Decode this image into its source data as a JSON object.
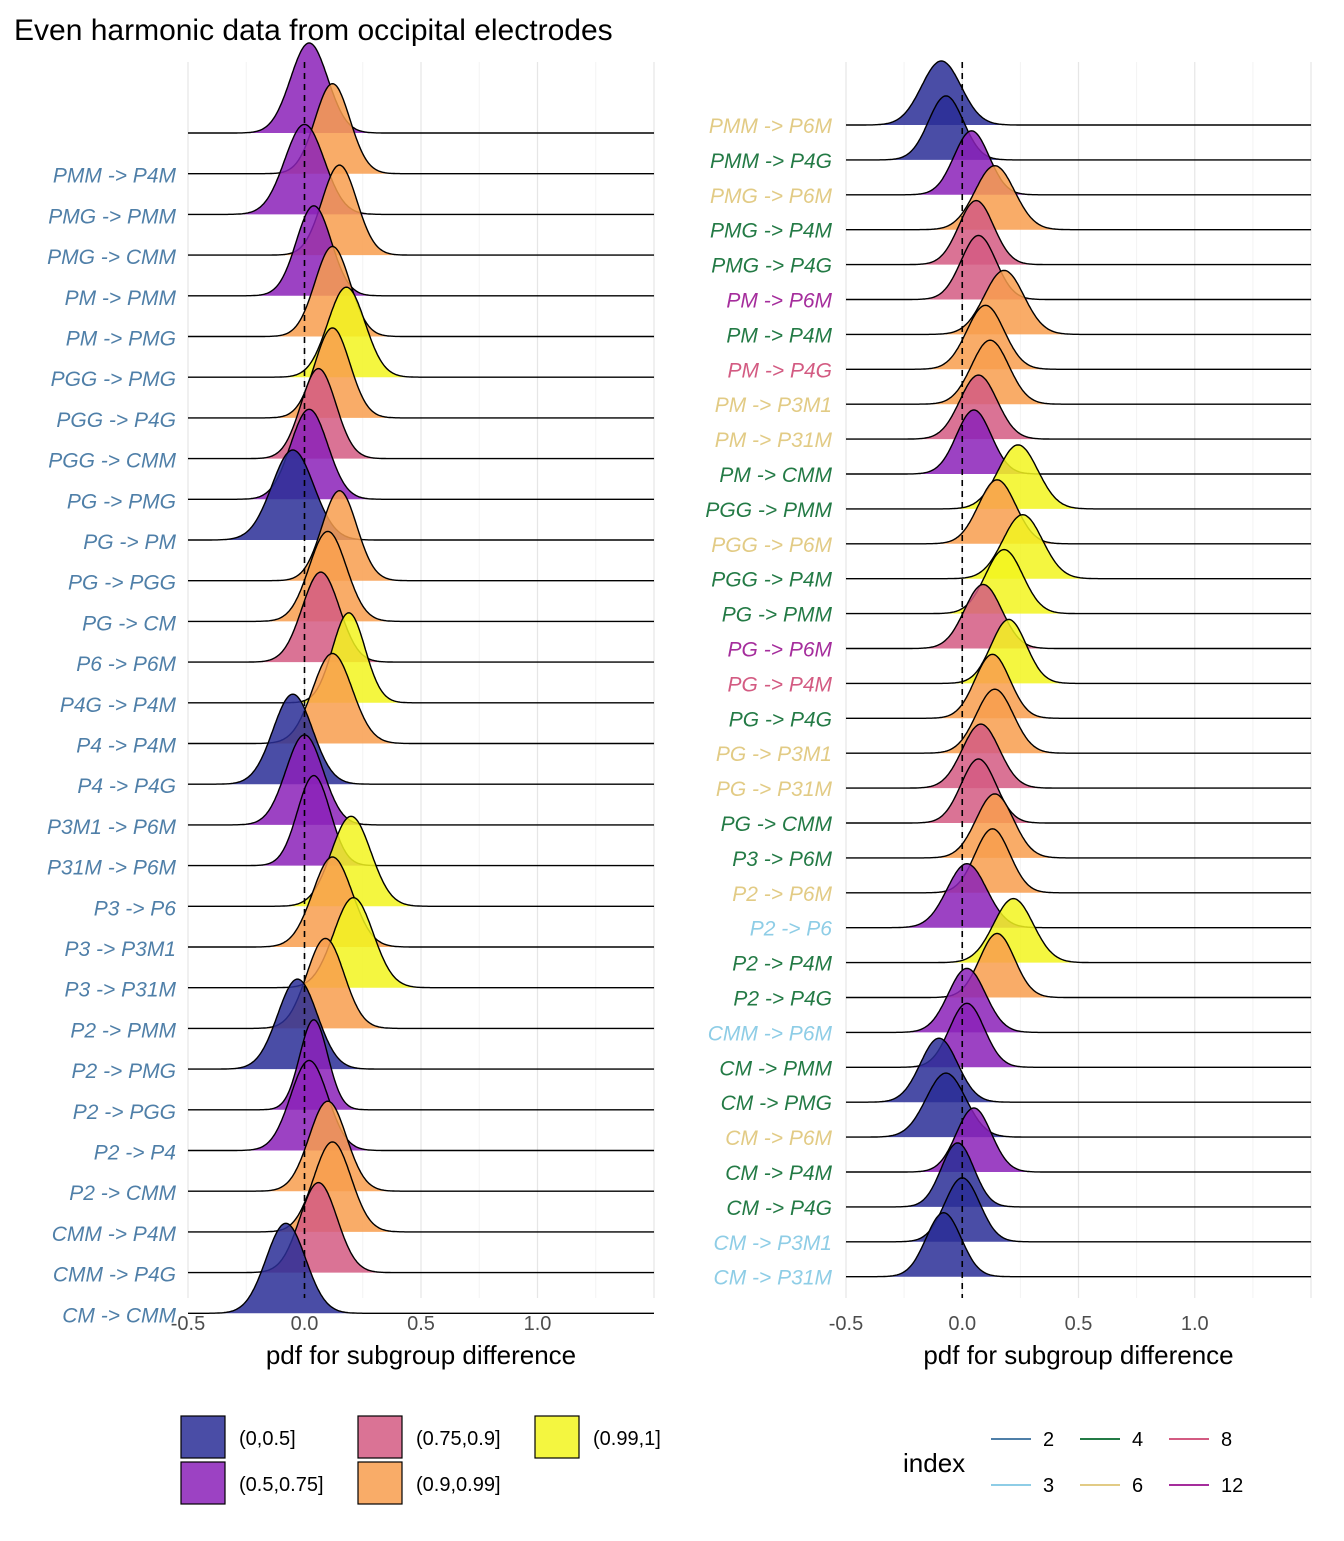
{
  "title": "Even harmonic data from occipital electrodes",
  "colors": {
    "fill": {
      "(0,0.5]": "#2A2E96",
      "(0.5,0.75]": "#8B21B8",
      "(0.75,0.9]": "#D35B82",
      "(0.9,0.99]": "#F89D4E",
      "(0.99,1]": "#F2F51F"
    },
    "index": {
      "2": "#4F7FA8",
      "3": "#8ECDE6",
      "4": "#237A45",
      "6": "#E2CB85",
      "8": "#D35B82",
      "12": "#A52D9C"
    }
  },
  "chart_data": [
    {
      "type": "ridgeline",
      "xlabel": "pdf for subgroup difference",
      "xlim": [
        -0.5,
        1.5
      ],
      "xticks": [
        -0.5,
        0.0,
        0.5,
        1.0
      ],
      "xtick_labels": [
        "-0.5",
        "0.0",
        "0.5",
        "1.0"
      ],
      "reference_line_x": 0,
      "rows": [
        {
          "label": "CM -> CMM",
          "index": "2",
          "mean": -0.08,
          "sd": 0.085,
          "prob": "(0,0.5]"
        },
        {
          "label": "CMM -> P4G",
          "index": "2",
          "mean": 0.06,
          "sd": 0.08,
          "prob": "(0.75,0.9]"
        },
        {
          "label": "CMM -> P4M",
          "index": "2",
          "mean": 0.12,
          "sd": 0.08,
          "prob": "(0.9,0.99]"
        },
        {
          "label": "P2 -> CMM",
          "index": "2",
          "mean": 0.1,
          "sd": 0.08,
          "prob": "(0.9,0.99]"
        },
        {
          "label": "P2 -> P4",
          "index": "2",
          "mean": 0.02,
          "sd": 0.08,
          "prob": "(0.5,0.75]"
        },
        {
          "label": "P2 -> PGG",
          "index": "2",
          "mean": 0.04,
          "sd": 0.06,
          "prob": "(0.5,0.75]"
        },
        {
          "label": "P2 -> PMG",
          "index": "2",
          "mean": -0.03,
          "sd": 0.085,
          "prob": "(0,0.5]"
        },
        {
          "label": "P2 -> PMM",
          "index": "2",
          "mean": 0.09,
          "sd": 0.08,
          "prob": "(0.9,0.99]"
        },
        {
          "label": "P3 -> P31M",
          "index": "2",
          "mean": 0.21,
          "sd": 0.085,
          "prob": "(0.99,1]"
        },
        {
          "label": "P3 -> P3M1",
          "index": "2",
          "mean": 0.12,
          "sd": 0.085,
          "prob": "(0.9,0.99]"
        },
        {
          "label": "P3 -> P6",
          "index": "2",
          "mean": 0.2,
          "sd": 0.085,
          "prob": "(0.99,1]"
        },
        {
          "label": "P31M -> P6M",
          "index": "2",
          "mean": 0.04,
          "sd": 0.07,
          "prob": "(0.5,0.75]"
        },
        {
          "label": "P3M1 -> P6M",
          "index": "2",
          "mean": 0.0,
          "sd": 0.08,
          "prob": "(0.5,0.75]"
        },
        {
          "label": "P4 -> P4G",
          "index": "2",
          "mean": -0.05,
          "sd": 0.085,
          "prob": "(0,0.5]"
        },
        {
          "label": "P4 -> P4M",
          "index": "2",
          "mean": 0.12,
          "sd": 0.085,
          "prob": "(0.9,0.99]"
        },
        {
          "label": "P4G -> P4M",
          "index": "2",
          "mean": 0.19,
          "sd": 0.07,
          "prob": "(0.99,1]"
        },
        {
          "label": "P6 -> P6M",
          "index": "2",
          "mean": 0.07,
          "sd": 0.08,
          "prob": "(0.75,0.9]"
        },
        {
          "label": "PG -> CM",
          "index": "2",
          "mean": 0.1,
          "sd": 0.08,
          "prob": "(0.9,0.99]"
        },
        {
          "label": "PG -> PGG",
          "index": "2",
          "mean": 0.15,
          "sd": 0.075,
          "prob": "(0.9,0.99]"
        },
        {
          "label": "PG -> PM",
          "index": "2",
          "mean": -0.05,
          "sd": 0.09,
          "prob": "(0,0.5]"
        },
        {
          "label": "PG -> PMG",
          "index": "2",
          "mean": 0.02,
          "sd": 0.08,
          "prob": "(0.5,0.75]"
        },
        {
          "label": "PGG -> CMM",
          "index": "2",
          "mean": 0.06,
          "sd": 0.075,
          "prob": "(0.75,0.9]"
        },
        {
          "label": "PGG -> P4G",
          "index": "2",
          "mean": 0.12,
          "sd": 0.075,
          "prob": "(0.9,0.99]"
        },
        {
          "label": "PGG -> PMG",
          "index": "2",
          "mean": 0.18,
          "sd": 0.08,
          "prob": "(0.99,1]"
        },
        {
          "label": "PM -> PMG",
          "index": "2",
          "mean": 0.12,
          "sd": 0.075,
          "prob": "(0.9,0.99]"
        },
        {
          "label": "PM -> PMM",
          "index": "2",
          "mean": 0.04,
          "sd": 0.075,
          "prob": "(0.5,0.75]"
        },
        {
          "label": "PMG -> CMM",
          "index": "2",
          "mean": 0.15,
          "sd": 0.075,
          "prob": "(0.9,0.99]"
        },
        {
          "label": "PMG -> PMM",
          "index": "2",
          "mean": 0.0,
          "sd": 0.085,
          "prob": "(0.5,0.75]"
        },
        {
          "label": "PMM -> P4M",
          "index": "2",
          "mean": 0.12,
          "sd": 0.075,
          "prob": "(0.9,0.99]"
        },
        {
          "label": "",
          "index": "2",
          "mean": 0.02,
          "sd": 0.08,
          "prob": "(0.5,0.75]"
        }
      ]
    },
    {
      "type": "ridgeline",
      "xlabel": "pdf for subgroup difference",
      "xlim": [
        -0.5,
        1.5
      ],
      "xticks": [
        -0.5,
        0.0,
        0.5,
        1.0
      ],
      "xtick_labels": [
        "-0.5",
        "0.0",
        "0.5",
        "1.0"
      ],
      "reference_line_x": 0,
      "rows": [
        {
          "label": "CM -> P31M",
          "index": "3",
          "mean": -0.08,
          "sd": 0.075,
          "prob": "(0,0.5]"
        },
        {
          "label": "CM -> P3M1",
          "index": "3",
          "mean": 0.0,
          "sd": 0.075,
          "prob": "(0,0.5]"
        },
        {
          "label": "CM -> P4G",
          "index": "4",
          "mean": -0.02,
          "sd": 0.07,
          "prob": "(0,0.5]"
        },
        {
          "label": "CM -> P4M",
          "index": "4",
          "mean": 0.05,
          "sd": 0.075,
          "prob": "(0.5,0.75]"
        },
        {
          "label": "CM -> P6M",
          "index": "6",
          "mean": -0.07,
          "sd": 0.085,
          "prob": "(0,0.5]"
        },
        {
          "label": "CM -> PMG",
          "index": "4",
          "mean": -0.1,
          "sd": 0.08,
          "prob": "(0,0.5]"
        },
        {
          "label": "CM -> PMM",
          "index": "4",
          "mean": 0.02,
          "sd": 0.075,
          "prob": "(0.5,0.75]"
        },
        {
          "label": "CMM -> P6M",
          "index": "3",
          "mean": 0.02,
          "sd": 0.08,
          "prob": "(0.5,0.75]"
        },
        {
          "label": "P2 -> P4G",
          "index": "4",
          "mean": 0.15,
          "sd": 0.075,
          "prob": "(0.9,0.99]"
        },
        {
          "label": "P2 -> P4M",
          "index": "4",
          "mean": 0.22,
          "sd": 0.085,
          "prob": "(0.99,1]"
        },
        {
          "label": "P2 -> P6",
          "index": "3",
          "mean": 0.02,
          "sd": 0.085,
          "prob": "(0.5,0.75]"
        },
        {
          "label": "P2 -> P6M",
          "index": "6",
          "mean": 0.13,
          "sd": 0.075,
          "prob": "(0.9,0.99]"
        },
        {
          "label": "P3 -> P6M",
          "index": "4",
          "mean": 0.14,
          "sd": 0.08,
          "prob": "(0.9,0.99]"
        },
        {
          "label": "PG -> CMM",
          "index": "4",
          "mean": 0.07,
          "sd": 0.075,
          "prob": "(0.75,0.9]"
        },
        {
          "label": "PG -> P31M",
          "index": "6",
          "mean": 0.08,
          "sd": 0.08,
          "prob": "(0.75,0.9]"
        },
        {
          "label": "PG -> P3M1",
          "index": "6",
          "mean": 0.14,
          "sd": 0.08,
          "prob": "(0.9,0.99]"
        },
        {
          "label": "PG -> P4G",
          "index": "4",
          "mean": 0.13,
          "sd": 0.075,
          "prob": "(0.9,0.99]"
        },
        {
          "label": "PG -> P4M",
          "index": "8",
          "mean": 0.2,
          "sd": 0.075,
          "prob": "(0.99,1]"
        },
        {
          "label": "PG -> P6M",
          "index": "12",
          "mean": 0.09,
          "sd": 0.08,
          "prob": "(0.75,0.9]"
        },
        {
          "label": "PG -> PMM",
          "index": "4",
          "mean": 0.18,
          "sd": 0.08,
          "prob": "(0.99,1]"
        },
        {
          "label": "PGG -> P4M",
          "index": "4",
          "mean": 0.26,
          "sd": 0.085,
          "prob": "(0.99,1]"
        },
        {
          "label": "PGG -> P6M",
          "index": "6",
          "mean": 0.15,
          "sd": 0.08,
          "prob": "(0.9,0.99]"
        },
        {
          "label": "PGG -> PMM",
          "index": "4",
          "mean": 0.24,
          "sd": 0.085,
          "prob": "(0.99,1]"
        },
        {
          "label": "PM -> CMM",
          "index": "4",
          "mean": 0.05,
          "sd": 0.075,
          "prob": "(0.5,0.75]"
        },
        {
          "label": "PM -> P31M",
          "index": "6",
          "mean": 0.07,
          "sd": 0.08,
          "prob": "(0.75,0.9]"
        },
        {
          "label": "PM -> P3M1",
          "index": "6",
          "mean": 0.12,
          "sd": 0.08,
          "prob": "(0.9,0.99]"
        },
        {
          "label": "PM -> P4G",
          "index": "8",
          "mean": 0.1,
          "sd": 0.08,
          "prob": "(0.9,0.99]"
        },
        {
          "label": "PM -> P4M",
          "index": "4",
          "mean": 0.18,
          "sd": 0.085,
          "prob": "(0.9,0.99]"
        },
        {
          "label": "PM -> P6M",
          "index": "12",
          "mean": 0.07,
          "sd": 0.075,
          "prob": "(0.75,0.9]"
        },
        {
          "label": "PMG -> P4G",
          "index": "4",
          "mean": 0.06,
          "sd": 0.075,
          "prob": "(0.75,0.9]"
        },
        {
          "label": "PMG -> P4M",
          "index": "4",
          "mean": 0.14,
          "sd": 0.085,
          "prob": "(0.9,0.99]"
        },
        {
          "label": "PMG -> P6M",
          "index": "6",
          "mean": 0.04,
          "sd": 0.075,
          "prob": "(0.5,0.75]"
        },
        {
          "label": "PMM -> P4G",
          "index": "4",
          "mean": -0.07,
          "sd": 0.075,
          "prob": "(0,0.5]"
        },
        {
          "label": "PMM -> P6M",
          "index": "6",
          "mean": -0.09,
          "sd": 0.085,
          "prob": "(0,0.5]"
        }
      ]
    }
  ],
  "legend": {
    "fill_items": [
      "(0,0.5]",
      "(0.5,0.75]",
      "(0.75,0.9]",
      "(0.9,0.99]",
      "(0.99,1]"
    ],
    "index_title": "index",
    "index_items": [
      "2",
      "3",
      "4",
      "6",
      "8",
      "12"
    ]
  }
}
